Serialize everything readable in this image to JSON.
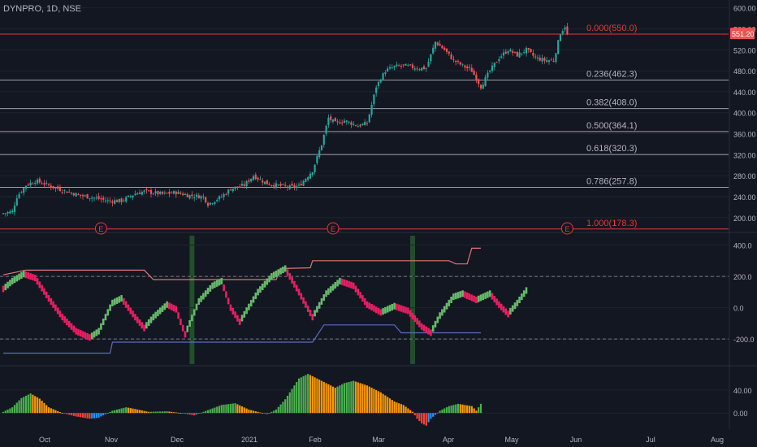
{
  "header": {
    "title": "DYNPRO, 1D, NSE"
  },
  "colors": {
    "background": "#131722",
    "grid": "#1f2330",
    "separator": "#2a2e39",
    "axis_text": "#b2b5be",
    "bull": "#26a69a",
    "bear": "#ef5350",
    "fib_top": "#e53935",
    "fib_line": "#b2b5be",
    "osc_up": "#66bb6a",
    "osc_down": "#e91e63",
    "upper_band": "#e57373",
    "lower_band": "#5c6bc0",
    "signal_green": "#2e7d32",
    "hist_green": "#4caf50",
    "hist_orange": "#ff9800",
    "hist_red": "#f44336",
    "hist_blue": "#2196f3",
    "price_tag": "#ef5350"
  },
  "chart_data": [
    {
      "type": "candlestick",
      "title": "DYNPRO, 1D, NSE",
      "ylim": [
        178,
        615
      ],
      "yticks": [
        200,
        240,
        280,
        320,
        360,
        400,
        440,
        480,
        520,
        560,
        600
      ],
      "ytick_labels": [
        "200.00",
        "240.00",
        "280.00",
        "320.00",
        "360.00",
        "400.00",
        "440.00",
        "480.00",
        "520.00",
        "560.00",
        "600.00"
      ],
      "last_price": 551.2,
      "last_price_label": "551.20",
      "anchors": [
        [
          0,
          208
        ],
        [
          4,
          212
        ],
        [
          6,
          240
        ],
        [
          10,
          262
        ],
        [
          14,
          270
        ],
        [
          18,
          265
        ],
        [
          22,
          258
        ],
        [
          28,
          250
        ],
        [
          34,
          242
        ],
        [
          40,
          238
        ],
        [
          46,
          232
        ],
        [
          52,
          232
        ],
        [
          58,
          246
        ],
        [
          62,
          250
        ],
        [
          70,
          245
        ],
        [
          76,
          248
        ],
        [
          82,
          242
        ],
        [
          88,
          240
        ],
        [
          90,
          226
        ],
        [
          96,
          240
        ],
        [
          100,
          255
        ],
        [
          106,
          262
        ],
        [
          110,
          280
        ],
        [
          116,
          265
        ],
        [
          120,
          262
        ],
        [
          126,
          258
        ],
        [
          130,
          260
        ],
        [
          136,
          290
        ],
        [
          140,
          340
        ],
        [
          143,
          390
        ],
        [
          146,
          380
        ],
        [
          150,
          385
        ],
        [
          156,
          375
        ],
        [
          160,
          380
        ],
        [
          164,
          450
        ],
        [
          168,
          480
        ],
        [
          172,
          488
        ],
        [
          176,
          490
        ],
        [
          182,
          485
        ],
        [
          186,
          485
        ],
        [
          190,
          535
        ],
        [
          194,
          520
        ],
        [
          198,
          500
        ],
        [
          202,
          490
        ],
        [
          206,
          480
        ],
        [
          210,
          450
        ],
        [
          214,
          480
        ],
        [
          218,
          505
        ],
        [
          222,
          520
        ],
        [
          226,
          510
        ],
        [
          230,
          520
        ],
        [
          234,
          505
        ],
        [
          238,
          500
        ],
        [
          242,
          500
        ],
        [
          245,
          552
        ],
        [
          247,
          565
        ],
        [
          248,
          548
        ]
      ],
      "n_bars": 249,
      "fib_levels": [
        {
          "ratio": "0.000",
          "value": 550.0,
          "label": "0.000(550.0)"
        },
        {
          "ratio": "0.236",
          "value": 462.3,
          "label": "0.236(462.3)"
        },
        {
          "ratio": "0.382",
          "value": 408.0,
          "label": "0.382(408.0)"
        },
        {
          "ratio": "0.500",
          "value": 364.1,
          "label": "0.500(364.1)"
        },
        {
          "ratio": "0.618",
          "value": 320.3,
          "label": "0.618(320.3)"
        },
        {
          "ratio": "0.786",
          "value": 257.8,
          "label": "0.786(257.8)"
        },
        {
          "ratio": "1.000",
          "value": 178.3,
          "label": "1.000(178.3)"
        }
      ],
      "earnings_markers": [
        {
          "date": "Nov 9",
          "bar": 43,
          "label": "E"
        },
        {
          "date": "Feb 12",
          "bar": 145,
          "label": "E"
        },
        {
          "date": "May 28",
          "bar": 248,
          "label": "E"
        }
      ]
    },
    {
      "type": "oscillator",
      "ylim": [
        -360,
        460
      ],
      "yticks": [
        400,
        200,
        0,
        -200
      ],
      "ytick_labels": [
        "400.0",
        "200.0",
        "0.0",
        "-200.0"
      ],
      "dashed_levels": [
        200,
        -200
      ],
      "anchors": [
        [
          0,
          120
        ],
        [
          4,
          170
        ],
        [
          9,
          215
        ],
        [
          14,
          190
        ],
        [
          20,
          60
        ],
        [
          26,
          -60
        ],
        [
          32,
          -150
        ],
        [
          38,
          -190
        ],
        [
          42,
          -150
        ],
        [
          48,
          30
        ],
        [
          52,
          60
        ],
        [
          58,
          -60
        ],
        [
          62,
          -130
        ],
        [
          66,
          -60
        ],
        [
          72,
          20
        ],
        [
          76,
          -10
        ],
        [
          80,
          -170
        ],
        [
          86,
          40
        ],
        [
          92,
          140
        ],
        [
          96,
          170
        ],
        [
          100,
          0
        ],
        [
          104,
          -90
        ],
        [
          112,
          100
        ],
        [
          118,
          200
        ],
        [
          124,
          250
        ],
        [
          130,
          100
        ],
        [
          136,
          -60
        ],
        [
          142,
          90
        ],
        [
          148,
          170
        ],
        [
          154,
          140
        ],
        [
          160,
          20
        ],
        [
          166,
          -30
        ],
        [
          172,
          10
        ],
        [
          178,
          -20
        ],
        [
          184,
          -120
        ],
        [
          188,
          -160
        ],
        [
          192,
          -50
        ],
        [
          198,
          70
        ],
        [
          202,
          90
        ],
        [
          208,
          50
        ],
        [
          214,
          90
        ],
        [
          218,
          20
        ],
        [
          222,
          -40
        ],
        [
          226,
          30
        ],
        [
          230,
          110
        ]
      ],
      "upper_band": [
        [
          0,
          210
        ],
        [
          10,
          240
        ],
        [
          62,
          240
        ],
        [
          66,
          180
        ],
        [
          120,
          180
        ],
        [
          122,
          250
        ],
        [
          135,
          255
        ],
        [
          136,
          300
        ],
        [
          196,
          300
        ],
        [
          199,
          280
        ],
        [
          204,
          280
        ],
        [
          206,
          380
        ],
        [
          210,
          380
        ]
      ],
      "lower_band": [
        [
          0,
          -290
        ],
        [
          47,
          -290
        ],
        [
          48,
          -220
        ],
        [
          136,
          -220
        ],
        [
          141,
          -110
        ],
        [
          172,
          -110
        ],
        [
          175,
          -160
        ],
        [
          210,
          -160
        ]
      ],
      "signals": [
        83,
        180
      ]
    },
    {
      "type": "histogram",
      "ylim": [
        -28,
        78
      ],
      "yticks": [
        40,
        0
      ],
      "ytick_labels": [
        "40.00",
        "0.00"
      ],
      "x_labels": [
        "Oct",
        "Nov",
        "Dec",
        "2021",
        "Feb",
        "Mar",
        "Apr",
        "May",
        "Jun",
        "Jul",
        "Aug"
      ],
      "anchors": [
        [
          0,
          2
        ],
        [
          4,
          10
        ],
        [
          8,
          26
        ],
        [
          12,
          34
        ],
        [
          16,
          25
        ],
        [
          20,
          10
        ],
        [
          26,
          0
        ],
        [
          32,
          -6
        ],
        [
          38,
          -10
        ],
        [
          42,
          -8
        ],
        [
          48,
          4
        ],
        [
          54,
          10
        ],
        [
          58,
          7
        ],
        [
          64,
          2
        ],
        [
          72,
          3
        ],
        [
          78,
          0
        ],
        [
          84,
          -4
        ],
        [
          88,
          2
        ],
        [
          96,
          14
        ],
        [
          102,
          17
        ],
        [
          108,
          6
        ],
        [
          114,
          0
        ],
        [
          116,
          -2
        ],
        [
          120,
          6
        ],
        [
          124,
          24
        ],
        [
          130,
          60
        ],
        [
          134,
          68
        ],
        [
          140,
          56
        ],
        [
          146,
          44
        ],
        [
          150,
          52
        ],
        [
          154,
          56
        ],
        [
          160,
          48
        ],
        [
          166,
          36
        ],
        [
          172,
          20
        ],
        [
          176,
          14
        ],
        [
          180,
          2
        ],
        [
          182,
          -10
        ],
        [
          184,
          -18
        ],
        [
          186,
          -22
        ],
        [
          188,
          -10
        ],
        [
          192,
          4
        ],
        [
          196,
          12
        ],
        [
          200,
          16
        ],
        [
          206,
          12
        ],
        [
          208,
          4
        ],
        [
          210,
          16
        ]
      ]
    }
  ]
}
